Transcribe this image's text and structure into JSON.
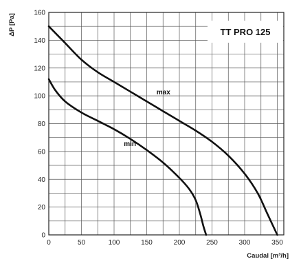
{
  "chart_data": {
    "type": "line",
    "badge": "TT PRO 125",
    "ylabel": "ΔP [Pa]",
    "xlabel": "Caudal [m³/h]",
    "xlim": [
      0,
      360
    ],
    "ylim": [
      0,
      160
    ],
    "x_ticks": [
      0,
      50,
      100,
      150,
      200,
      250,
      300,
      350
    ],
    "y_ticks": [
      0,
      20,
      40,
      60,
      80,
      100,
      120,
      140,
      160
    ],
    "x_grid_step": 25,
    "y_grid_step": 10,
    "grid": true,
    "series": [
      {
        "name": "max",
        "points": [
          [
            0,
            150
          ],
          [
            25,
            138
          ],
          [
            50,
            126
          ],
          [
            75,
            117
          ],
          [
            100,
            110
          ],
          [
            125,
            103
          ],
          [
            150,
            96
          ],
          [
            175,
            89
          ],
          [
            200,
            82
          ],
          [
            225,
            75
          ],
          [
            250,
            67
          ],
          [
            275,
            57
          ],
          [
            300,
            44
          ],
          [
            320,
            30
          ],
          [
            335,
            15
          ],
          [
            350,
            0
          ]
        ]
      },
      {
        "name": "min",
        "points": [
          [
            0,
            112
          ],
          [
            10,
            104
          ],
          [
            25,
            96
          ],
          [
            50,
            88
          ],
          [
            75,
            82
          ],
          [
            100,
            76
          ],
          [
            125,
            69
          ],
          [
            150,
            61
          ],
          [
            175,
            52
          ],
          [
            200,
            41
          ],
          [
            215,
            33
          ],
          [
            225,
            25
          ],
          [
            232,
            15
          ],
          [
            237,
            6
          ],
          [
            241,
            0
          ]
        ]
      }
    ]
  }
}
